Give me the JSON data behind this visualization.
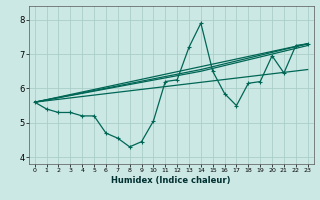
{
  "xlabel": "Humidex (Indice chaleur)",
  "xlim": [
    -0.5,
    23.5
  ],
  "ylim": [
    3.8,
    8.4
  ],
  "yticks": [
    4,
    5,
    6,
    7,
    8
  ],
  "xticks": [
    0,
    1,
    2,
    3,
    4,
    5,
    6,
    7,
    8,
    9,
    10,
    11,
    12,
    13,
    14,
    15,
    16,
    17,
    18,
    19,
    20,
    21,
    22,
    23
  ],
  "bg_color": "#cce8e4",
  "grid_color": "#aacfc8",
  "line_color": "#006655",
  "series_x": [
    0,
    1,
    2,
    3,
    4,
    5,
    6,
    7,
    8,
    9,
    10,
    11,
    12,
    13,
    14,
    15,
    16,
    17,
    18,
    19,
    20,
    21,
    22,
    23
  ],
  "series_y": [
    5.6,
    5.4,
    5.3,
    5.3,
    5.2,
    5.2,
    4.7,
    4.55,
    4.3,
    4.45,
    5.05,
    6.2,
    6.25,
    7.2,
    7.9,
    6.5,
    5.85,
    5.5,
    6.15,
    6.2,
    6.95,
    6.45,
    7.25,
    7.3
  ],
  "trend1_x": [
    0,
    23
  ],
  "trend1_y": [
    5.6,
    7.3
  ],
  "trend2_x": [
    0,
    23
  ],
  "trend2_y": [
    5.6,
    6.55
  ],
  "trend3_x": [
    0,
    14,
    23
  ],
  "trend3_y": [
    5.6,
    6.5,
    7.25
  ],
  "trend4_x": [
    0,
    14,
    23
  ],
  "trend4_y": [
    5.6,
    6.55,
    7.3
  ]
}
